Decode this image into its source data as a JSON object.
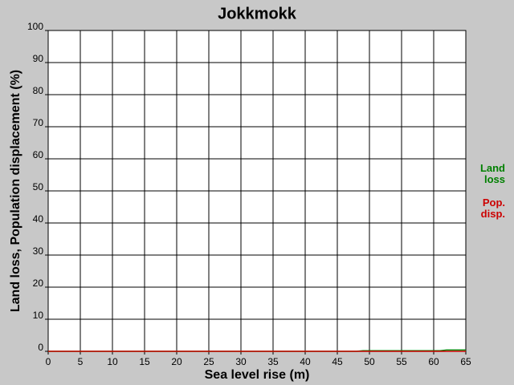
{
  "chart_data": {
    "type": "line",
    "title": "Jokkmokk",
    "x_label": "Sea level rise (m)",
    "y_label": "Land loss, Population displacement (%)",
    "x": [
      0,
      48,
      49,
      61,
      62,
      65
    ],
    "series": [
      {
        "name": "Land loss",
        "color": "#008000",
        "values": [
          0,
          0,
          0.2,
          0.2,
          0.4,
          0.4
        ]
      },
      {
        "name": "Pop. disp.",
        "color": "#cc0000",
        "values": [
          0,
          0,
          0,
          0,
          0,
          0
        ]
      }
    ],
    "xlim": [
      0,
      65
    ],
    "xticks": [
      0,
      5,
      10,
      15,
      20,
      25,
      30,
      35,
      40,
      45,
      50,
      55,
      60,
      65
    ],
    "ylim": [
      0,
      100
    ],
    "yticks": [
      0,
      10,
      20,
      30,
      40,
      50,
      60,
      70,
      80,
      90,
      100
    ],
    "grid": true
  }
}
